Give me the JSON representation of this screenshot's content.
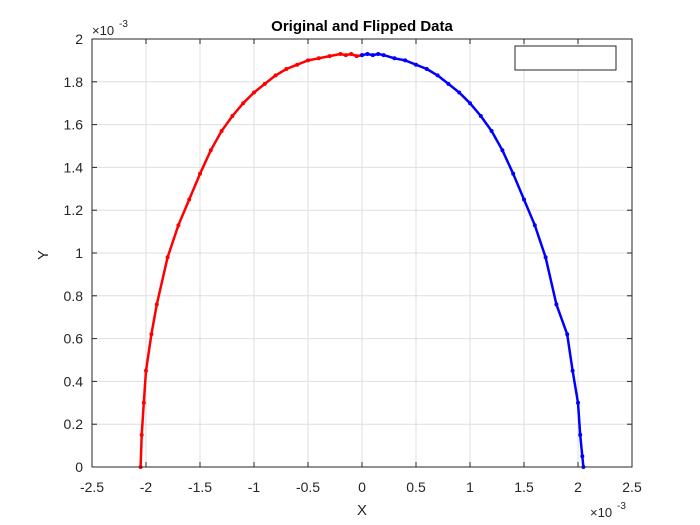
{
  "chart_data": {
    "type": "line",
    "title": "Original and Flipped Data",
    "xlabel": "X",
    "ylabel": "Y",
    "x_exponent_label": "×10",
    "x_exponent_power": "-3",
    "y_exponent_label": "×10",
    "y_exponent_power": "-3",
    "xlim": [
      -2.5,
      2.5
    ],
    "ylim": [
      0,
      2
    ],
    "x_ticks": [
      -2.5,
      -2,
      -1.5,
      -1,
      -0.5,
      0,
      0.5,
      1,
      1.5,
      2,
      2.5
    ],
    "x_tick_labels": [
      "-2.5",
      "-2",
      "-1.5",
      "-1",
      "-0.5",
      "0",
      "0.5",
      "1",
      "1.5",
      "2",
      "2.5"
    ],
    "y_ticks": [
      0,
      0.2,
      0.4,
      0.6,
      0.8,
      1,
      1.2,
      1.4,
      1.6,
      1.8,
      2
    ],
    "y_tick_labels": [
      "0",
      "0.2",
      "0.4",
      "0.6",
      "0.8",
      "1",
      "1.2",
      "1.4",
      "1.6",
      "1.8",
      "2"
    ],
    "grid": true,
    "legend": {
      "placement": "top-right",
      "entries": []
    },
    "series": [
      {
        "color": "#ff0000",
        "x": [
          -2.05,
          -2.04,
          -2.02,
          -2.0,
          -1.95,
          -1.9,
          -1.8,
          -1.7,
          -1.6,
          -1.5,
          -1.4,
          -1.3,
          -1.2,
          -1.1,
          -1.0,
          -0.9,
          -0.8,
          -0.7,
          -0.6,
          -0.5,
          -0.4,
          -0.3,
          -0.2,
          -0.15,
          -0.1,
          -0.05,
          0.0
        ],
        "y": [
          0.0,
          0.15,
          0.3,
          0.45,
          0.62,
          0.76,
          0.98,
          1.13,
          1.25,
          1.37,
          1.48,
          1.57,
          1.64,
          1.7,
          1.75,
          1.79,
          1.83,
          1.86,
          1.88,
          1.9,
          1.91,
          1.92,
          1.93,
          1.925,
          1.93,
          1.92,
          1.925
        ]
      },
      {
        "color": "#0000ff",
        "x": [
          0.0,
          0.05,
          0.1,
          0.15,
          0.2,
          0.3,
          0.4,
          0.5,
          0.6,
          0.7,
          0.8,
          0.9,
          1.0,
          1.1,
          1.2,
          1.3,
          1.4,
          1.5,
          1.6,
          1.7,
          1.8,
          1.9,
          1.95,
          2.0,
          2.02,
          2.04,
          2.05
        ],
        "y": [
          1.925,
          1.93,
          1.925,
          1.93,
          1.925,
          1.91,
          1.9,
          1.88,
          1.86,
          1.83,
          1.79,
          1.75,
          1.7,
          1.64,
          1.57,
          1.48,
          1.37,
          1.25,
          1.13,
          0.98,
          0.76,
          0.62,
          0.45,
          0.3,
          0.15,
          0.05,
          0.0
        ]
      }
    ]
  }
}
